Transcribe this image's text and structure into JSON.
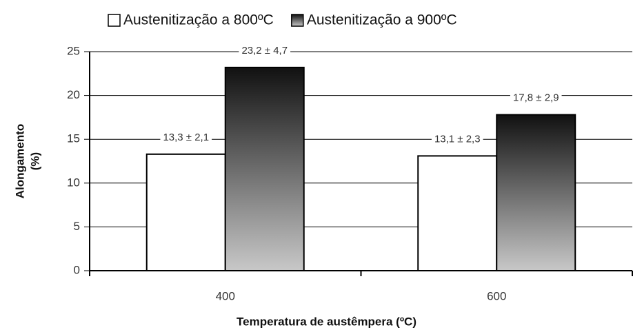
{
  "chart_data": {
    "type": "bar",
    "categories": [
      "400",
      "600"
    ],
    "xlabel": "Temperatura de austêmpera (ºC)",
    "ylabel": [
      "Alongamento",
      "(%)"
    ],
    "series": [
      {
        "name": "Austenitização a 800ºC",
        "color": "#ffffff",
        "values": [
          13.3,
          13.1
        ],
        "value_labels": [
          "13,3 ± 2,1",
          "13,1 ± 2,3"
        ]
      },
      {
        "name": "Austenitização a 900ºC",
        "color": "#111111",
        "gradient": true,
        "values": [
          23.2,
          17.8
        ],
        "value_labels": [
          "23,2 ± 4,7",
          "17,8 ± 2,9"
        ]
      }
    ],
    "ylim": [
      0,
      25
    ],
    "yticks": [
      0,
      5,
      10,
      15,
      20,
      25
    ],
    "grid": true
  }
}
